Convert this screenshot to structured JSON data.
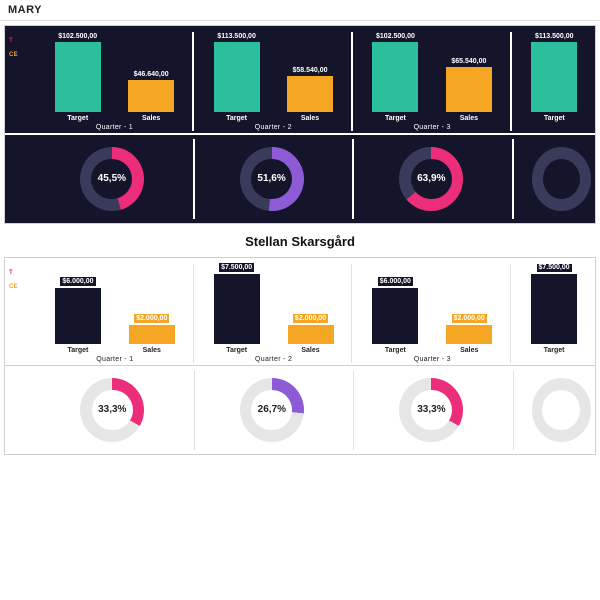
{
  "header": {
    "title": "MARY"
  },
  "colors": {
    "dark_bg": "#14142b",
    "light_bg": "#ffffff",
    "target_bar": "#2bbf9b",
    "sales_bar": "#f5a623",
    "target_bar_light": "#14142b",
    "sales_bar_light": "#f5a623",
    "donut_track_dark": "#3a3a5a",
    "donut_track_light": "#e6e6e6",
    "donut1": "#ec2d7a",
    "donut2": "#8e5bd6",
    "donut3": "#ec2d7a",
    "donut4": "#8e5bd6",
    "text_light": "#ffffff",
    "text_dark": "#222222"
  },
  "summary": {
    "side": {
      "label1": "T",
      "label2": "CE"
    },
    "quarters": [
      {
        "name": "Quarter - 1",
        "target": {
          "label": "Target",
          "value_text": "$102.500,00",
          "height_pct": 100
        },
        "sales": {
          "label": "Sales",
          "value_text": "$46.640,00",
          "height_pct": 46
        }
      },
      {
        "name": "Quarter - 2",
        "target": {
          "label": "Target",
          "value_text": "$113.500,00",
          "height_pct": 100
        },
        "sales": {
          "label": "Sales",
          "value_text": "$58.540,00",
          "height_pct": 52
        }
      },
      {
        "name": "Quarter - 3",
        "target": {
          "label": "Target",
          "value_text": "$102.500,00",
          "height_pct": 100
        },
        "sales": {
          "label": "Sales",
          "value_text": "$65.540,00",
          "height_pct": 64
        }
      },
      {
        "name": "",
        "target": {
          "label": "Target",
          "value_text": "$113.500,00",
          "height_pct": 100
        },
        "sales": {
          "label": "",
          "value_text": "",
          "height_pct": 0
        }
      }
    ],
    "donuts": [
      {
        "pct_text": "45,5%",
        "pct": 45.5,
        "color": "#ec2d7a"
      },
      {
        "pct_text": "51,6%",
        "pct": 51.6,
        "color": "#8e5bd6"
      },
      {
        "pct_text": "63,9%",
        "pct": 63.9,
        "color": "#ec2d7a"
      },
      {
        "pct_text": "",
        "pct": 0,
        "color": "#8e5bd6"
      }
    ]
  },
  "person": {
    "name": "Stellan Skarsgård",
    "side": {
      "label1": "T",
      "label2": "CE"
    },
    "quarters": [
      {
        "name": "Quarter - 1",
        "target": {
          "label": "Target",
          "value_text": "$6.000,00",
          "height_pct": 80
        },
        "sales": {
          "label": "Sales",
          "value_text": "$2.000,00",
          "height_pct": 27
        }
      },
      {
        "name": "Quarter - 2",
        "target": {
          "label": "Target",
          "value_text": "$7.500,00",
          "height_pct": 100
        },
        "sales": {
          "label": "Sales",
          "value_text": "$2.000,00",
          "height_pct": 27
        }
      },
      {
        "name": "Quarter - 3",
        "target": {
          "label": "Target",
          "value_text": "$6.000,00",
          "height_pct": 80
        },
        "sales": {
          "label": "Sales",
          "value_text": "$2.000,00",
          "height_pct": 27
        }
      },
      {
        "name": "",
        "target": {
          "label": "Target",
          "value_text": "$7.500,00",
          "height_pct": 100
        },
        "sales": {
          "label": "",
          "value_text": "",
          "height_pct": 0
        }
      }
    ],
    "donuts": [
      {
        "pct_text": "33,3%",
        "pct": 33.3,
        "color": "#ec2d7a"
      },
      {
        "pct_text": "26,7%",
        "pct": 26.7,
        "color": "#8e5bd6"
      },
      {
        "pct_text": "33,3%",
        "pct": 33.3,
        "color": "#ec2d7a"
      },
      {
        "pct_text": "",
        "pct": 0,
        "color": "#8e5bd6"
      }
    ]
  }
}
